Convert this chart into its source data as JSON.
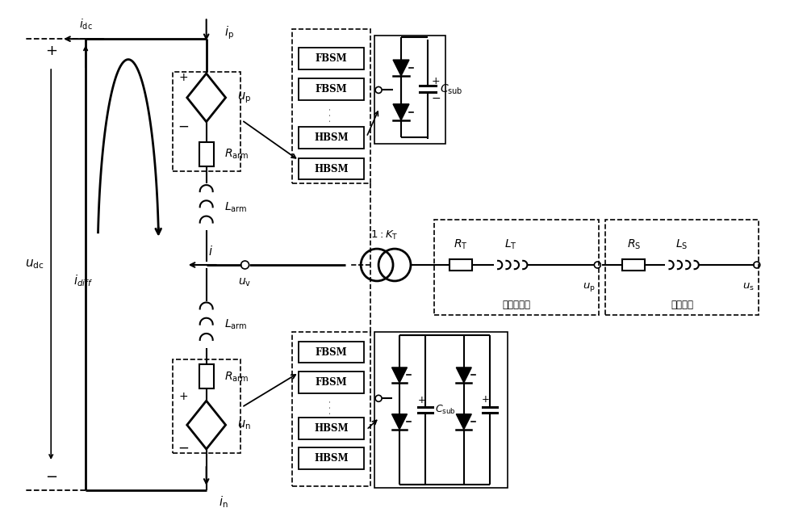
{
  "bg_color": "#ffffff",
  "lc": "#000000",
  "fig_w": 10.0,
  "fig_h": 6.55,
  "dpi": 100,
  "xlim": [
    0,
    10
  ],
  "ylim": [
    0,
    6.55
  ]
}
